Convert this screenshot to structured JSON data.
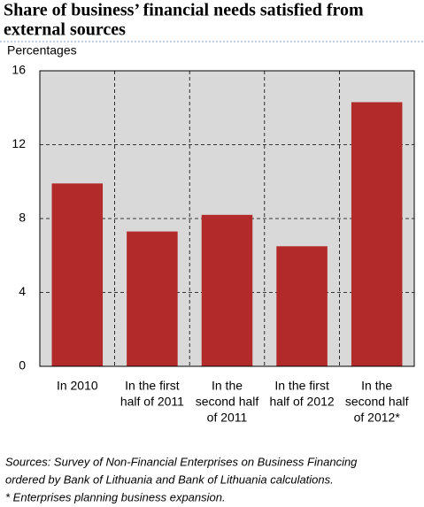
{
  "chart_data": {
    "type": "bar",
    "title": [
      "Share of business’ financial needs satisfied from",
      "external sources"
    ],
    "y_label": "Percentages",
    "categories": [
      [
        "In 2010"
      ],
      [
        "In the first",
        "half of 2011"
      ],
      [
        "In the",
        "second half",
        "of 2011"
      ],
      [
        "In the first",
        "half of 2012"
      ],
      [
        "In the",
        "second half",
        "of 2012*"
      ]
    ],
    "values": [
      9.9,
      7.3,
      8.2,
      6.5,
      14.3
    ],
    "color": "#b22a2a",
    "ylim": [
      0,
      16
    ],
    "yticks": [
      0,
      4,
      8,
      12,
      16
    ],
    "grid": true,
    "notes": [
      "Sources: Survey of Non-Financial Enterprises on Business Financing",
      "ordered by Bank of Lithuania and Bank of Lithuania calculations.",
      "* Enterprises planning business expansion."
    ]
  }
}
